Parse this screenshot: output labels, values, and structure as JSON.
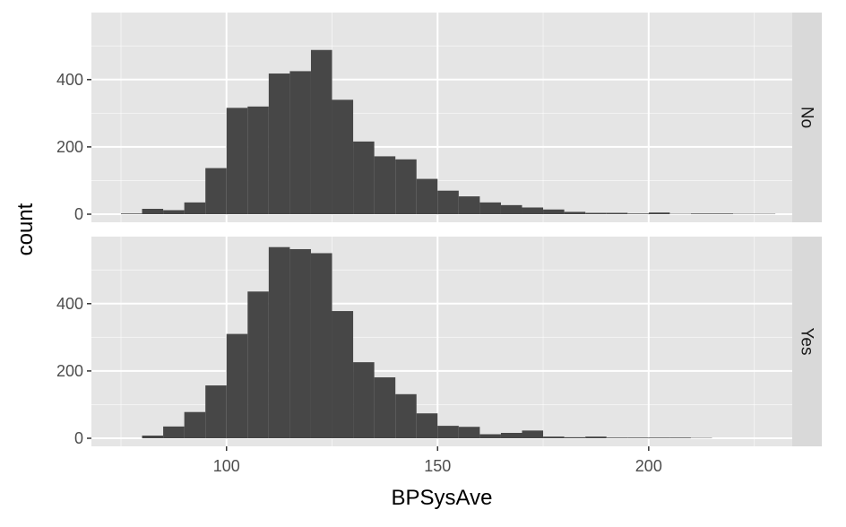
{
  "chart_data": {
    "type": "bar",
    "subtype": "histogram-faceted",
    "xlabel": "BPSysAve",
    "ylabel": "count",
    "xlim": [
      68,
      234
    ],
    "x_ticks": [
      100,
      150,
      200
    ],
    "y_ticks": [
      0,
      200,
      400
    ],
    "ylim": [
      0,
      600
    ],
    "bin_width": 5,
    "grid": true,
    "facet_strip_position": "right",
    "colors": {
      "bar": "#474747",
      "panel_background": "#e5e5e5",
      "grid_major": "#ffffff",
      "strip_background": "#d9d9d9",
      "axis_text": "#4d4d4d",
      "title_text": "#000000"
    },
    "panels": [
      {
        "strip_label": "No",
        "bins": [
          {
            "x0": 75,
            "x1": 80,
            "count": 2
          },
          {
            "x0": 80,
            "x1": 85,
            "count": 16
          },
          {
            "x0": 85,
            "x1": 90,
            "count": 12
          },
          {
            "x0": 90,
            "x1": 95,
            "count": 35
          },
          {
            "x0": 95,
            "x1": 100,
            "count": 137
          },
          {
            "x0": 100,
            "x1": 105,
            "count": 316
          },
          {
            "x0": 105,
            "x1": 110,
            "count": 320
          },
          {
            "x0": 110,
            "x1": 115,
            "count": 418
          },
          {
            "x0": 115,
            "x1": 120,
            "count": 425
          },
          {
            "x0": 120,
            "x1": 125,
            "count": 488
          },
          {
            "x0": 125,
            "x1": 130,
            "count": 340
          },
          {
            "x0": 130,
            "x1": 135,
            "count": 216
          },
          {
            "x0": 135,
            "x1": 140,
            "count": 172
          },
          {
            "x0": 140,
            "x1": 145,
            "count": 163
          },
          {
            "x0": 145,
            "x1": 150,
            "count": 105
          },
          {
            "x0": 150,
            "x1": 155,
            "count": 70
          },
          {
            "x0": 155,
            "x1": 160,
            "count": 53
          },
          {
            "x0": 160,
            "x1": 165,
            "count": 35
          },
          {
            "x0": 165,
            "x1": 170,
            "count": 27
          },
          {
            "x0": 170,
            "x1": 175,
            "count": 20
          },
          {
            "x0": 175,
            "x1": 180,
            "count": 14
          },
          {
            "x0": 180,
            "x1": 185,
            "count": 7
          },
          {
            "x0": 185,
            "x1": 190,
            "count": 4
          },
          {
            "x0": 190,
            "x1": 195,
            "count": 4
          },
          {
            "x0": 195,
            "x1": 200,
            "count": 2
          },
          {
            "x0": 200,
            "x1": 205,
            "count": 5
          },
          {
            "x0": 205,
            "x1": 210,
            "count": 1
          },
          {
            "x0": 210,
            "x1": 215,
            "count": 2
          },
          {
            "x0": 215,
            "x1": 220,
            "count": 2
          },
          {
            "x0": 220,
            "x1": 225,
            "count": 1
          },
          {
            "x0": 225,
            "x1": 230,
            "count": 1
          }
        ]
      },
      {
        "strip_label": "Yes",
        "bins": [
          {
            "x0": 80,
            "x1": 85,
            "count": 8
          },
          {
            "x0": 85,
            "x1": 90,
            "count": 35
          },
          {
            "x0": 90,
            "x1": 95,
            "count": 78
          },
          {
            "x0": 95,
            "x1": 100,
            "count": 157
          },
          {
            "x0": 100,
            "x1": 105,
            "count": 310
          },
          {
            "x0": 105,
            "x1": 110,
            "count": 436
          },
          {
            "x0": 110,
            "x1": 115,
            "count": 568
          },
          {
            "x0": 115,
            "x1": 120,
            "count": 562
          },
          {
            "x0": 120,
            "x1": 125,
            "count": 550
          },
          {
            "x0": 125,
            "x1": 130,
            "count": 378
          },
          {
            "x0": 130,
            "x1": 135,
            "count": 226
          },
          {
            "x0": 135,
            "x1": 140,
            "count": 181
          },
          {
            "x0": 140,
            "x1": 145,
            "count": 131
          },
          {
            "x0": 145,
            "x1": 150,
            "count": 74
          },
          {
            "x0": 150,
            "x1": 155,
            "count": 37
          },
          {
            "x0": 155,
            "x1": 160,
            "count": 34
          },
          {
            "x0": 160,
            "x1": 165,
            "count": 12
          },
          {
            "x0": 165,
            "x1": 170,
            "count": 16
          },
          {
            "x0": 170,
            "x1": 175,
            "count": 23
          },
          {
            "x0": 175,
            "x1": 180,
            "count": 5
          },
          {
            "x0": 180,
            "x1": 185,
            "count": 3
          },
          {
            "x0": 185,
            "x1": 190,
            "count": 5
          },
          {
            "x0": 190,
            "x1": 195,
            "count": 2
          },
          {
            "x0": 195,
            "x1": 200,
            "count": 2
          },
          {
            "x0": 200,
            "x1": 205,
            "count": 2
          },
          {
            "x0": 205,
            "x1": 210,
            "count": 2
          },
          {
            "x0": 210,
            "x1": 215,
            "count": 1
          }
        ]
      }
    ]
  }
}
